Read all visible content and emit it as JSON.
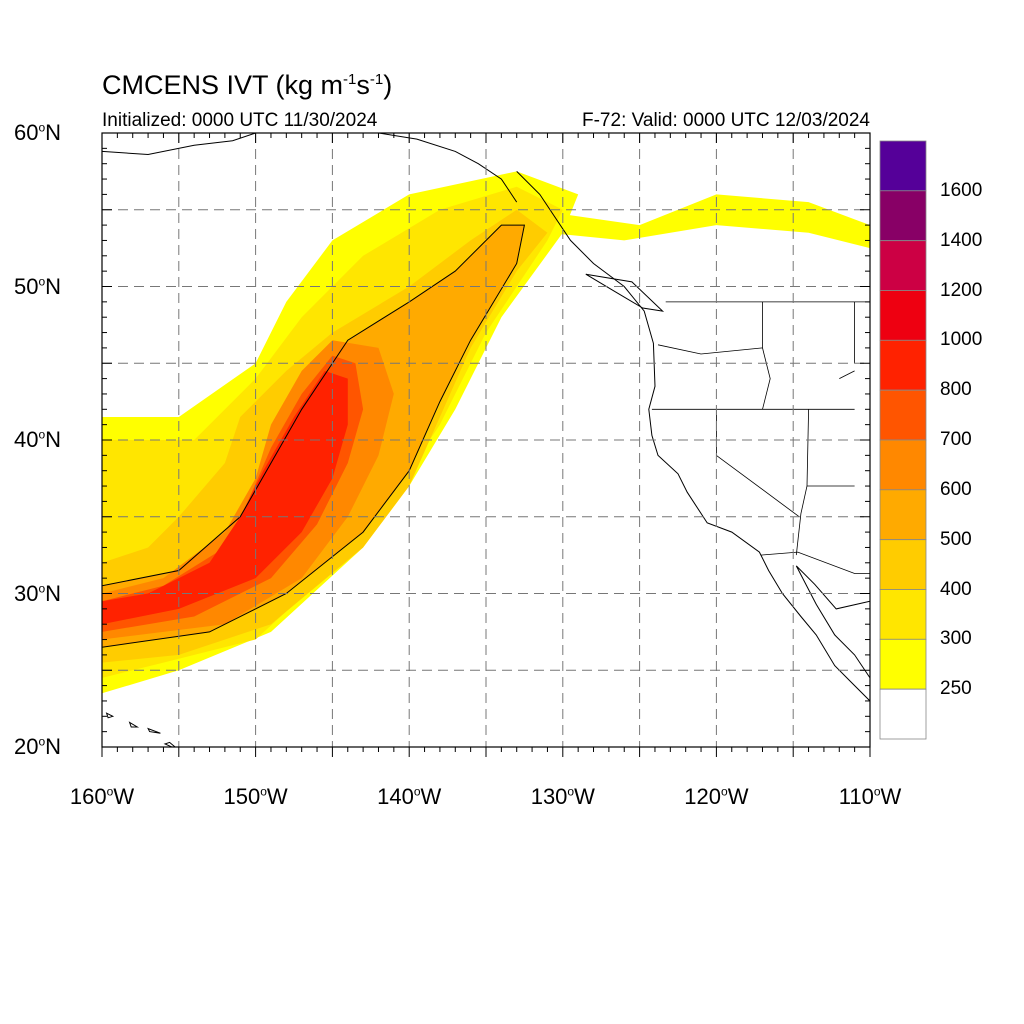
{
  "title": {
    "prefix": "CMCENS IVT (kg m",
    "exp1": "-1",
    "mid": "s",
    "exp2": "-1",
    "suffix": ")"
  },
  "initialized": "Initialized: 0000 UTC 11/30/2024",
  "valid": "F-72: Valid: 0000 UTC 12/03/2024",
  "lat_ticks": [
    {
      "deg": 60,
      "text": "60",
      "hemi": "N"
    },
    {
      "deg": 50,
      "text": "50",
      "hemi": "N"
    },
    {
      "deg": 40,
      "text": "40",
      "hemi": "N"
    },
    {
      "deg": 30,
      "text": "30",
      "hemi": "N"
    },
    {
      "deg": 20,
      "text": "20",
      "hemi": "N"
    }
  ],
  "lon_ticks": [
    {
      "deg": -160,
      "text": "160",
      "hemi": "W"
    },
    {
      "deg": -150,
      "text": "150",
      "hemi": "W"
    },
    {
      "deg": -140,
      "text": "140",
      "hemi": "W"
    },
    {
      "deg": -130,
      "text": "130",
      "hemi": "W"
    },
    {
      "deg": -120,
      "text": "120",
      "hemi": "W"
    },
    {
      "deg": -110,
      "text": "110",
      "hemi": "W"
    }
  ],
  "map_extent": {
    "lon": [
      -160,
      -110
    ],
    "lat": [
      20,
      60
    ]
  },
  "colorbar": {
    "labels": [
      "1600",
      "1400",
      "1200",
      "1000",
      "800",
      "700",
      "600",
      "500",
      "400",
      "300",
      "250"
    ],
    "levels": [
      250,
      300,
      400,
      500,
      600,
      700,
      800,
      1000,
      1200,
      1400,
      1600
    ],
    "colors": [
      "#ffffff",
      "#ffff00",
      "#ffe600",
      "#ffcc00",
      "#ffaa00",
      "#ff8800",
      "#ff5500",
      "#ff2200",
      "#ee0011",
      "#cc0044",
      "#880066",
      "#550099"
    ]
  },
  "chart_data": {
    "type": "heatmap",
    "variable": "IVT",
    "units": "kg m-1 s-1",
    "contour_line_level": 500,
    "ivt_field_bands": [
      {
        "min": 250,
        "outline": [
          [
            -160,
            41.5
          ],
          [
            -155,
            41.5
          ],
          [
            -150,
            45
          ],
          [
            -148,
            49
          ],
          [
            -145,
            53
          ],
          [
            -140,
            56
          ],
          [
            -133,
            57.5
          ],
          [
            -129,
            56
          ],
          [
            -130,
            53.5
          ],
          [
            -134,
            48
          ],
          [
            -137,
            42
          ],
          [
            -140,
            37
          ],
          [
            -143,
            33
          ],
          [
            -149,
            27.5
          ],
          [
            -155,
            25
          ],
          [
            -160,
            23.5
          ]
        ]
      },
      {
        "min": 250,
        "outline": [
          [
            -132,
            55
          ],
          [
            -125,
            54
          ],
          [
            -120,
            56
          ],
          [
            -114,
            55.5
          ],
          [
            -110,
            54
          ],
          [
            -110,
            52.5
          ],
          [
            -114,
            53.5
          ],
          [
            -120,
            54
          ],
          [
            -126,
            53
          ],
          [
            -131,
            53.5
          ]
        ]
      },
      {
        "min": 300,
        "outline": [
          [
            -160,
            40
          ],
          [
            -154,
            40
          ],
          [
            -150,
            44
          ],
          [
            -147,
            48
          ],
          [
            -143,
            52
          ],
          [
            -138,
            55
          ],
          [
            -133,
            56.5
          ],
          [
            -130,
            55
          ],
          [
            -131,
            53
          ],
          [
            -135,
            47
          ],
          [
            -138,
            41
          ],
          [
            -141,
            36.5
          ],
          [
            -144,
            32.5
          ],
          [
            -150,
            27
          ],
          [
            -156,
            25.5
          ],
          [
            -160,
            24.5
          ]
        ]
      },
      {
        "min": 400,
        "outline": [
          [
            -160,
            32
          ],
          [
            -157,
            33
          ],
          [
            -155,
            35
          ],
          [
            -152,
            38.5
          ],
          [
            -151,
            41.5
          ],
          [
            -148,
            44.5
          ],
          [
            -145,
            47
          ],
          [
            -140,
            50
          ],
          [
            -136,
            53
          ],
          [
            -133,
            55
          ],
          [
            -131,
            53.5
          ],
          [
            -133,
            51
          ],
          [
            -136,
            46
          ],
          [
            -138,
            41.5
          ],
          [
            -140,
            37
          ],
          [
            -143,
            33
          ],
          [
            -149,
            28
          ],
          [
            -155,
            26
          ],
          [
            -160,
            25.5
          ]
        ]
      },
      {
        "min": 500,
        "outline": [
          [
            -160,
            30.5
          ],
          [
            -155,
            31.5
          ],
          [
            -151,
            35
          ],
          [
            -149,
            38.5
          ],
          [
            -147,
            42
          ],
          [
            -144,
            46.5
          ],
          [
            -140,
            49
          ],
          [
            -137,
            51
          ],
          [
            -134,
            54
          ],
          [
            -132.5,
            54
          ],
          [
            -133,
            51.5
          ],
          [
            -136,
            46.5
          ],
          [
            -138,
            42.5
          ],
          [
            -140,
            38
          ],
          [
            -143,
            34
          ],
          [
            -148,
            30
          ],
          [
            -153,
            27.5
          ],
          [
            -160,
            26.5
          ]
        ]
      },
      {
        "min": 600,
        "outline": [
          [
            -160,
            30
          ],
          [
            -156,
            31
          ],
          [
            -152,
            34
          ],
          [
            -150,
            37.5
          ],
          [
            -149,
            41
          ],
          [
            -147,
            44.5
          ],
          [
            -145,
            46.5
          ],
          [
            -142,
            46
          ],
          [
            -141,
            43
          ],
          [
            -142,
            39
          ],
          [
            -144,
            35
          ],
          [
            -147,
            31
          ],
          [
            -152,
            28
          ],
          [
            -160,
            27
          ]
        ]
      },
      {
        "min": 700,
        "outline": [
          [
            -160,
            29.5
          ],
          [
            -156,
            30.5
          ],
          [
            -152,
            33
          ],
          [
            -150.5,
            36
          ],
          [
            -149,
            39.5
          ],
          [
            -147,
            43
          ],
          [
            -145,
            45.5
          ],
          [
            -143.5,
            45
          ],
          [
            -143,
            42
          ],
          [
            -144,
            38.5
          ],
          [
            -146,
            34.5
          ],
          [
            -149,
            31
          ],
          [
            -154,
            28.5
          ],
          [
            -160,
            27.5
          ]
        ]
      },
      {
        "min": 800,
        "outline": [
          [
            -160,
            29.5
          ],
          [
            -157,
            30
          ],
          [
            -153,
            32
          ],
          [
            -151,
            35
          ],
          [
            -149.5,
            38
          ],
          [
            -147.5,
            41.5
          ],
          [
            -145.5,
            44.5
          ],
          [
            -144,
            44
          ],
          [
            -144,
            41
          ],
          [
            -145,
            37.5
          ],
          [
            -147,
            34
          ],
          [
            -150,
            31
          ],
          [
            -155,
            29
          ],
          [
            -160,
            28
          ]
        ]
      }
    ]
  }
}
